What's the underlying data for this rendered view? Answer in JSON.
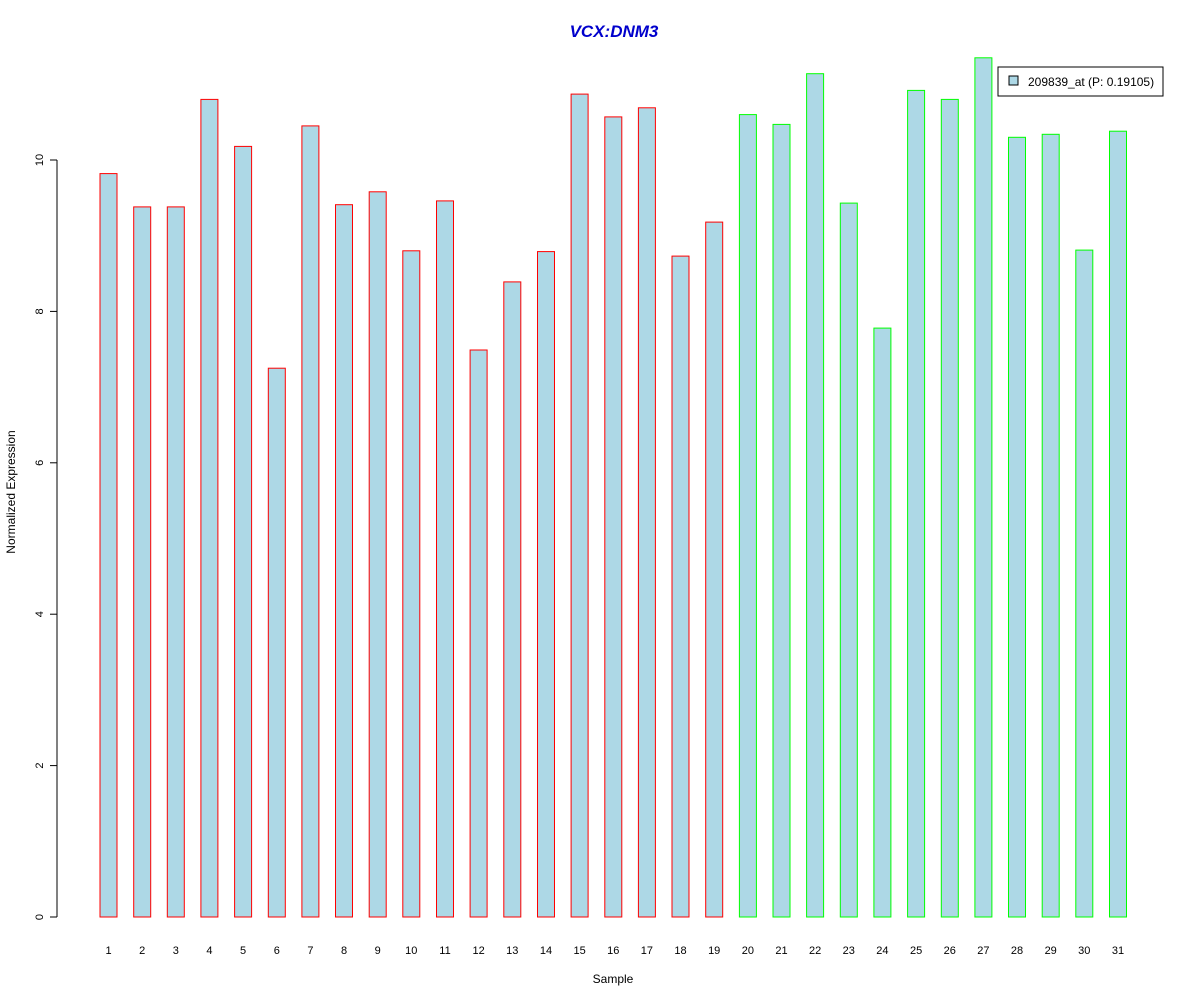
{
  "chart_data": {
    "type": "bar",
    "title": "VCX:DNM3",
    "xlabel": "Sample",
    "ylabel": "Normalized Expression",
    "ylim": [
      0,
      11.5
    ],
    "yticks": [
      0,
      2,
      4,
      6,
      8,
      10
    ],
    "grid": false,
    "legend_placement": "top-right",
    "categories": [
      "1",
      "2",
      "3",
      "4",
      "5",
      "6",
      "7",
      "8",
      "9",
      "10",
      "11",
      "12",
      "13",
      "14",
      "15",
      "16",
      "17",
      "18",
      "19",
      "20",
      "21",
      "22",
      "23",
      "24",
      "25",
      "26",
      "27",
      "28",
      "29",
      "30",
      "31"
    ],
    "series": [
      {
        "name": "209839_at (P: 0.19105)",
        "values": [
          9.82,
          9.38,
          9.38,
          10.8,
          10.18,
          7.25,
          10.45,
          9.41,
          9.58,
          8.8,
          9.46,
          7.49,
          8.39,
          8.79,
          10.87,
          10.57,
          10.69,
          8.73,
          9.18,
          10.6,
          10.47,
          11.14,
          9.43,
          7.78,
          10.92,
          10.8,
          11.35,
          10.3,
          10.34,
          8.81,
          10.38
        ],
        "fill_color": "#ADD8E6",
        "border_colors": [
          "#FF0000",
          "#FF0000",
          "#FF0000",
          "#FF0000",
          "#FF0000",
          "#FF0000",
          "#FF0000",
          "#FF0000",
          "#FF0000",
          "#FF0000",
          "#FF0000",
          "#FF0000",
          "#FF0000",
          "#FF0000",
          "#FF0000",
          "#FF0000",
          "#FF0000",
          "#FF0000",
          "#FF0000",
          "#00FF00",
          "#00FF00",
          "#00FF00",
          "#00FF00",
          "#00FF00",
          "#00FF00",
          "#00FF00",
          "#00FF00",
          "#00FF00",
          "#00FF00",
          "#00FF00",
          "#00FF00"
        ]
      }
    ],
    "colors": {
      "title": "#0000CC",
      "axis": "#000000"
    }
  }
}
